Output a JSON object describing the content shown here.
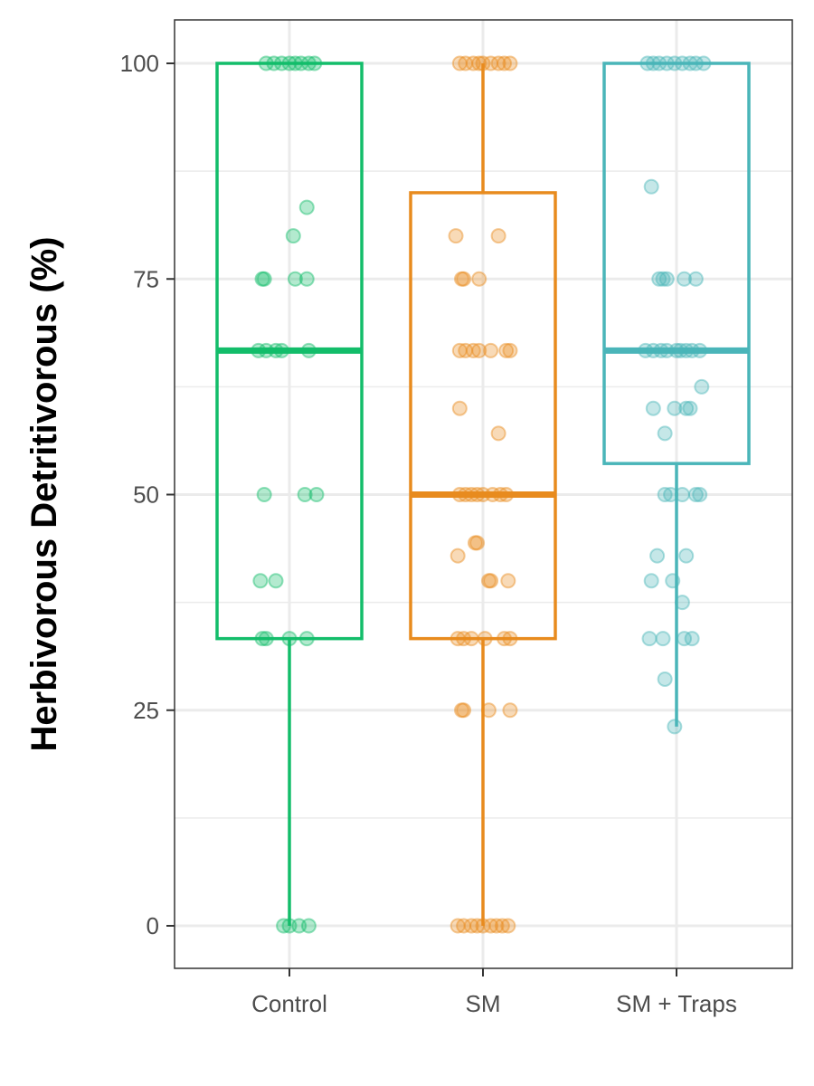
{
  "chart_data": {
    "type": "box",
    "ylabel": "Herbivorous Detritivorous (%)",
    "xlabel": "",
    "title": "",
    "ylim": [
      -5,
      105
    ],
    "y_ticks": [
      "0",
      "25",
      "50",
      "75",
      "100"
    ],
    "y_tick_values": [
      0,
      25,
      50,
      75,
      100
    ],
    "y_minor_ticks": [
      12.5,
      37.5,
      62.5,
      87.5
    ],
    "categories": [
      "Control",
      "SM",
      "SM + Traps"
    ],
    "grid": true,
    "legend": "none",
    "groups": [
      {
        "name": "Control",
        "color": "#13bd6a",
        "box": {
          "min": 0,
          "q1": 33.3,
          "median": 66.7,
          "q3": 100,
          "max": 100
        },
        "points": [
          {
            "x": -0.12,
            "y": 100
          },
          {
            "x": -0.08,
            "y": 100
          },
          {
            "x": -0.04,
            "y": 100
          },
          {
            "x": 0.0,
            "y": 100
          },
          {
            "x": 0.03,
            "y": 100
          },
          {
            "x": 0.06,
            "y": 100
          },
          {
            "x": 0.1,
            "y": 100
          },
          {
            "x": 0.13,
            "y": 100
          },
          {
            "x": 0.09,
            "y": 83.3
          },
          {
            "x": 0.02,
            "y": 80
          },
          {
            "x": -0.13,
            "y": 75
          },
          {
            "x": -0.14,
            "y": 75
          },
          {
            "x": 0.03,
            "y": 75
          },
          {
            "x": 0.09,
            "y": 75
          },
          {
            "x": -0.16,
            "y": 66.7
          },
          {
            "x": -0.12,
            "y": 66.7
          },
          {
            "x": -0.07,
            "y": 66.7
          },
          {
            "x": -0.04,
            "y": 66.7
          },
          {
            "x": 0.1,
            "y": 66.7
          },
          {
            "x": -0.13,
            "y": 50
          },
          {
            "x": 0.08,
            "y": 50
          },
          {
            "x": 0.14,
            "y": 50
          },
          {
            "x": -0.15,
            "y": 40
          },
          {
            "x": -0.07,
            "y": 40
          },
          {
            "x": -0.14,
            "y": 33.3
          },
          {
            "x": -0.12,
            "y": 33.3
          },
          {
            "x": 0.0,
            "y": 33.3
          },
          {
            "x": 0.09,
            "y": 33.3
          },
          {
            "x": -0.03,
            "y": 0
          },
          {
            "x": 0.0,
            "y": 0
          },
          {
            "x": 0.05,
            "y": 0
          },
          {
            "x": 0.1,
            "y": 0
          }
        ]
      },
      {
        "name": "SM",
        "color": "#e88b1e",
        "box": {
          "min": 0,
          "q1": 33.3,
          "median": 50,
          "q3": 85,
          "max": 100
        },
        "points": [
          {
            "x": -0.12,
            "y": 100
          },
          {
            "x": -0.09,
            "y": 100
          },
          {
            "x": -0.05,
            "y": 100
          },
          {
            "x": -0.02,
            "y": 100
          },
          {
            "x": 0.0,
            "y": 100
          },
          {
            "x": 0.04,
            "y": 100
          },
          {
            "x": 0.08,
            "y": 100
          },
          {
            "x": 0.11,
            "y": 100
          },
          {
            "x": 0.14,
            "y": 100
          },
          {
            "x": -0.14,
            "y": 80
          },
          {
            "x": 0.08,
            "y": 80
          },
          {
            "x": -0.11,
            "y": 75
          },
          {
            "x": -0.1,
            "y": 75
          },
          {
            "x": -0.02,
            "y": 75
          },
          {
            "x": -0.12,
            "y": 66.7
          },
          {
            "x": -0.09,
            "y": 66.7
          },
          {
            "x": -0.05,
            "y": 66.7
          },
          {
            "x": -0.02,
            "y": 66.7
          },
          {
            "x": 0.04,
            "y": 66.7
          },
          {
            "x": 0.12,
            "y": 66.7
          },
          {
            "x": 0.14,
            "y": 66.7
          },
          {
            "x": -0.12,
            "y": 60
          },
          {
            "x": 0.08,
            "y": 57.1
          },
          {
            "x": -0.12,
            "y": 50
          },
          {
            "x": -0.09,
            "y": 50
          },
          {
            "x": -0.06,
            "y": 50
          },
          {
            "x": -0.03,
            "y": 50
          },
          {
            "x": 0.0,
            "y": 50
          },
          {
            "x": 0.05,
            "y": 50
          },
          {
            "x": 0.09,
            "y": 50
          },
          {
            "x": 0.12,
            "y": 50
          },
          {
            "x": -0.04,
            "y": 44.4
          },
          {
            "x": -0.03,
            "y": 44.4
          },
          {
            "x": -0.13,
            "y": 42.9
          },
          {
            "x": 0.04,
            "y": 40
          },
          {
            "x": 0.03,
            "y": 40
          },
          {
            "x": 0.13,
            "y": 40
          },
          {
            "x": -0.13,
            "y": 33.3
          },
          {
            "x": -0.1,
            "y": 33.3
          },
          {
            "x": -0.06,
            "y": 33.3
          },
          {
            "x": 0.01,
            "y": 33.3
          },
          {
            "x": 0.11,
            "y": 33.3
          },
          {
            "x": 0.14,
            "y": 33.3
          },
          {
            "x": -0.11,
            "y": 25
          },
          {
            "x": -0.1,
            "y": 25
          },
          {
            "x": 0.03,
            "y": 25
          },
          {
            "x": 0.14,
            "y": 25
          },
          {
            "x": -0.13,
            "y": 0
          },
          {
            "x": -0.1,
            "y": 0
          },
          {
            "x": -0.06,
            "y": 0
          },
          {
            "x": -0.03,
            "y": 0
          },
          {
            "x": 0.0,
            "y": 0
          },
          {
            "x": 0.04,
            "y": 0
          },
          {
            "x": 0.07,
            "y": 0
          },
          {
            "x": 0.1,
            "y": 0
          },
          {
            "x": 0.13,
            "y": 0
          }
        ]
      },
      {
        "name": "SM + Traps",
        "color": "#4ab5b9",
        "box": {
          "min": 23.1,
          "q1": 53.6,
          "median": 66.7,
          "q3": 100,
          "max": 100
        },
        "points": [
          {
            "x": -0.15,
            "y": 100
          },
          {
            "x": -0.12,
            "y": 100
          },
          {
            "x": -0.09,
            "y": 100
          },
          {
            "x": -0.05,
            "y": 100
          },
          {
            "x": -0.01,
            "y": 100
          },
          {
            "x": 0.03,
            "y": 100
          },
          {
            "x": 0.07,
            "y": 100
          },
          {
            "x": 0.1,
            "y": 100
          },
          {
            "x": 0.14,
            "y": 100
          },
          {
            "x": -0.13,
            "y": 85.7
          },
          {
            "x": -0.09,
            "y": 75
          },
          {
            "x": -0.07,
            "y": 75
          },
          {
            "x": -0.05,
            "y": 75
          },
          {
            "x": 0.04,
            "y": 75
          },
          {
            "x": 0.1,
            "y": 75
          },
          {
            "x": -0.16,
            "y": 66.7
          },
          {
            "x": -0.12,
            "y": 66.7
          },
          {
            "x": -0.08,
            "y": 66.7
          },
          {
            "x": -0.05,
            "y": 66.7
          },
          {
            "x": 0.0,
            "y": 66.7
          },
          {
            "x": 0.02,
            "y": 66.7
          },
          {
            "x": 0.05,
            "y": 66.7
          },
          {
            "x": 0.08,
            "y": 66.7
          },
          {
            "x": 0.12,
            "y": 66.7
          },
          {
            "x": 0.13,
            "y": 62.5
          },
          {
            "x": -0.12,
            "y": 60
          },
          {
            "x": -0.01,
            "y": 60
          },
          {
            "x": 0.05,
            "y": 60
          },
          {
            "x": 0.07,
            "y": 60
          },
          {
            "x": -0.06,
            "y": 57.1
          },
          {
            "x": -0.06,
            "y": 50
          },
          {
            "x": -0.03,
            "y": 50
          },
          {
            "x": 0.03,
            "y": 50
          },
          {
            "x": 0.1,
            "y": 50
          },
          {
            "x": 0.12,
            "y": 50
          },
          {
            "x": -0.1,
            "y": 42.9
          },
          {
            "x": 0.05,
            "y": 42.9
          },
          {
            "x": -0.13,
            "y": 40
          },
          {
            "x": -0.02,
            "y": 40
          },
          {
            "x": 0.03,
            "y": 37.5
          },
          {
            "x": -0.14,
            "y": 33.3
          },
          {
            "x": -0.07,
            "y": 33.3
          },
          {
            "x": 0.04,
            "y": 33.3
          },
          {
            "x": 0.08,
            "y": 33.3
          },
          {
            "x": -0.06,
            "y": 28.6
          },
          {
            "x": -0.01,
            "y": 23.1
          }
        ]
      }
    ]
  }
}
